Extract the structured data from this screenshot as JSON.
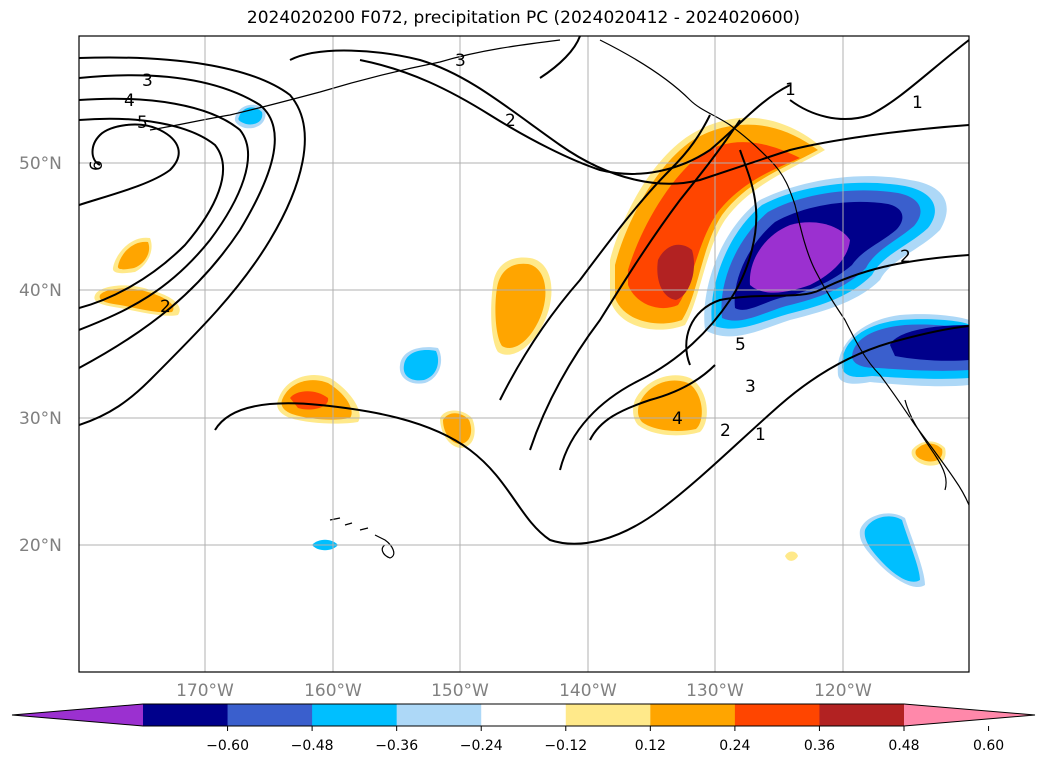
{
  "title": "2024020200 F072, precipitation PC (2024020412 - 2024020600)",
  "map": {
    "projection": "plate-carree",
    "lon_range": [
      -180,
      -110
    ],
    "lat_range": [
      10,
      60
    ],
    "grid": true,
    "lat_labels": [
      "50°N",
      "40°N",
      "30°N",
      "20°N"
    ],
    "lon_labels": [
      "170°W",
      "160°W",
      "150°W",
      "140°W",
      "130°W",
      "120°W"
    ],
    "contour_labels": [
      "3",
      "4",
      "5",
      "6",
      "2",
      "3",
      "2",
      "1",
      "2",
      "1",
      "3",
      "2",
      "1",
      "4",
      "5"
    ]
  },
  "colorbar": {
    "ticks": [
      "−0.60",
      "−0.48",
      "−0.36",
      "−0.24",
      "−0.12",
      "0.12",
      "0.24",
      "0.36",
      "0.48",
      "0.60"
    ],
    "colors": [
      "#9b30d0",
      "#00008b",
      "#3a5fcd",
      "#00bfff",
      "#add8f7",
      "#ffffff",
      "#ffe98a",
      "#ffa500",
      "#ff4500",
      "#b22222",
      "#ff88aa"
    ],
    "extend": "both"
  }
}
